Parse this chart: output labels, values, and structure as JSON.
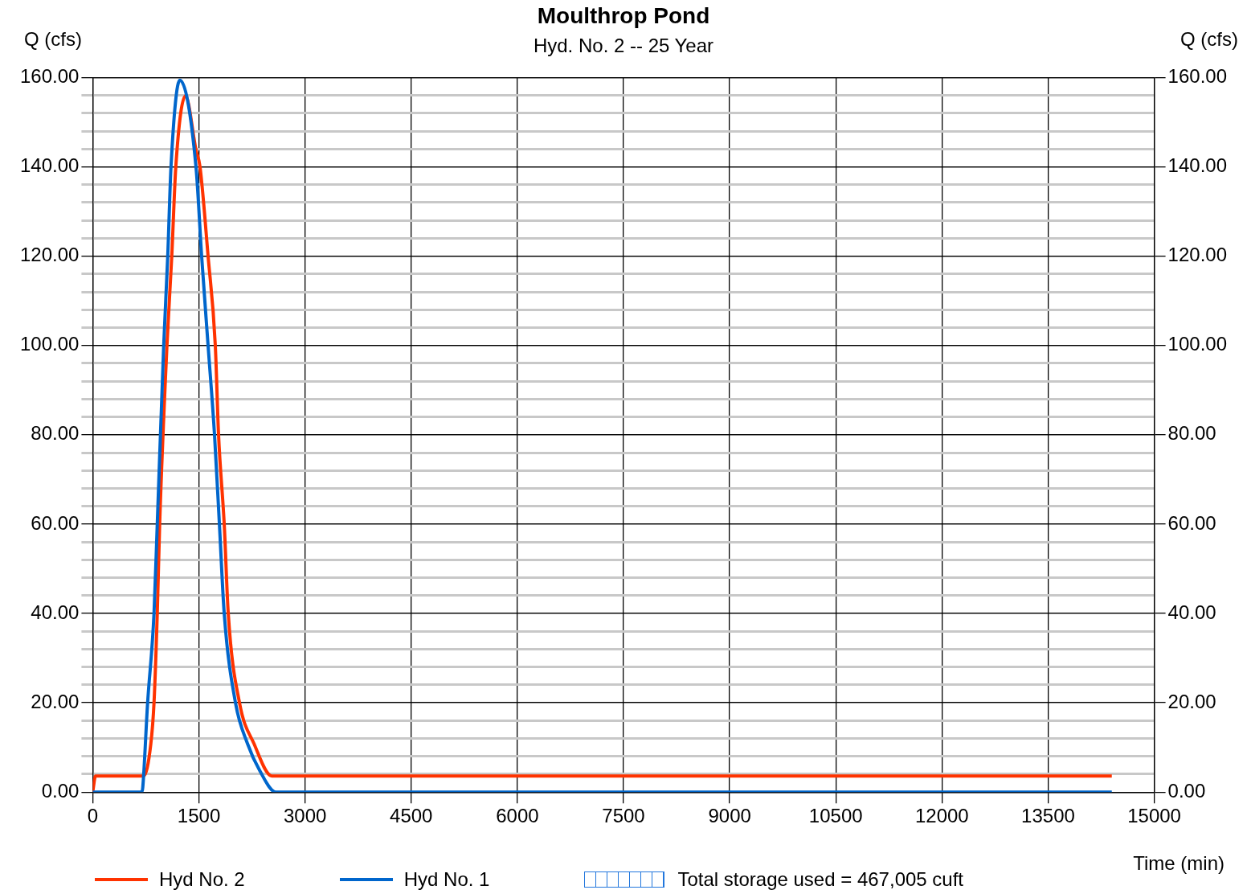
{
  "chart_data": {
    "type": "line",
    "title": "Moulthrop Pond",
    "subtitle": "Hyd. No. 2 -- 25 Year",
    "xlabel": "Time (min)",
    "ylabel": "Q (cfs)",
    "y2label": "Q (cfs)",
    "xlim": [
      0,
      15000
    ],
    "xticks": [
      0,
      1500,
      3000,
      4500,
      6000,
      7500,
      9000,
      10500,
      12000,
      13500,
      15000
    ],
    "ylim": [
      0,
      160
    ],
    "yticks": [
      {
        "value": 0,
        "label": "0.00"
      },
      {
        "value": 4,
        "label": null
      },
      {
        "value": 8,
        "label": null
      },
      {
        "value": 12,
        "label": null
      },
      {
        "value": 16,
        "label": null
      },
      {
        "value": 20,
        "label": "20.00"
      },
      {
        "value": 24,
        "label": null
      },
      {
        "value": 28,
        "label": null
      },
      {
        "value": 32,
        "label": null
      },
      {
        "value": 36,
        "label": null
      },
      {
        "value": 40,
        "label": "40.00"
      },
      {
        "value": 44,
        "label": null
      },
      {
        "value": 48,
        "label": null
      },
      {
        "value": 52,
        "label": null
      },
      {
        "value": 56,
        "label": null
      },
      {
        "value": 60,
        "label": "60.00"
      },
      {
        "value": 64,
        "label": null
      },
      {
        "value": 68,
        "label": null
      },
      {
        "value": 72,
        "label": null
      },
      {
        "value": 76,
        "label": null
      },
      {
        "value": 80,
        "label": "80.00"
      },
      {
        "value": 84,
        "label": null
      },
      {
        "value": 88,
        "label": null
      },
      {
        "value": 92,
        "label": null
      },
      {
        "value": 96,
        "label": null
      },
      {
        "value": 100,
        "label": "100.00"
      },
      {
        "value": 104,
        "label": null
      },
      {
        "value": 108,
        "label": null
      },
      {
        "value": 112,
        "label": null
      },
      {
        "value": 116,
        "label": null
      },
      {
        "value": 120,
        "label": "120.00"
      },
      {
        "value": 124,
        "label": null
      },
      {
        "value": 128,
        "label": null
      },
      {
        "value": 132,
        "label": null
      },
      {
        "value": 136,
        "label": null
      },
      {
        "value": 140,
        "label": "140.00"
      },
      {
        "value": 144,
        "label": null
      },
      {
        "value": 148,
        "label": null
      },
      {
        "value": 152,
        "label": null
      },
      {
        "value": 156,
        "label": null
      },
      {
        "value": 160,
        "label": "160.00"
      }
    ],
    "y2lim": [
      0,
      160
    ],
    "y2ticks": [
      {
        "value": 0,
        "label": "0.00"
      },
      {
        "value": 20,
        "label": "20.00"
      },
      {
        "value": 40,
        "label": "40.00"
      },
      {
        "value": 60,
        "label": "60.00"
      },
      {
        "value": 80,
        "label": "80.00"
      },
      {
        "value": 100,
        "label": "100.00"
      },
      {
        "value": 120,
        "label": "120.00"
      },
      {
        "value": 140,
        "label": "140.00"
      },
      {
        "value": 160,
        "label": "160.00"
      }
    ],
    "grid": true,
    "legend": "bottom",
    "line_style": "solid",
    "annotations": [
      "Total storage used = 467,005 cuft"
    ],
    "series": [
      {
        "name": "Hyd No. 2",
        "color": "#ff3300",
        "x": [
          0,
          40,
          720,
          821,
          866,
          912,
          946,
          1049,
          1117,
          1174,
          1311,
          1459,
          1516,
          1630,
          1732,
          1778,
          1858,
          1915,
          2074,
          2280,
          2530,
          14400
        ],
        "values": [
          0,
          3.6,
          3.6,
          10.8,
          20,
          40,
          60,
          100,
          120,
          140,
          155.9,
          143.8,
          140,
          120,
          100,
          80,
          60,
          40,
          20,
          10.8,
          3.6,
          3.6
        ]
      },
      {
        "name": "Hyd No. 1",
        "color": "#0066cc",
        "x": [
          0,
          695,
          707,
          775,
          866,
          912,
          1003,
          1060,
          1106,
          1231,
          1459,
          1539,
          1630,
          1721,
          1790,
          1858,
          2017,
          2188,
          2360,
          2587,
          14400
        ],
        "values": [
          0,
          0,
          1,
          19.8,
          40,
          60,
          100,
          120,
          140,
          159.4,
          140,
          120,
          100,
          80,
          60,
          40,
          20,
          10.8,
          4.8,
          0,
          0
        ]
      }
    ]
  }
}
